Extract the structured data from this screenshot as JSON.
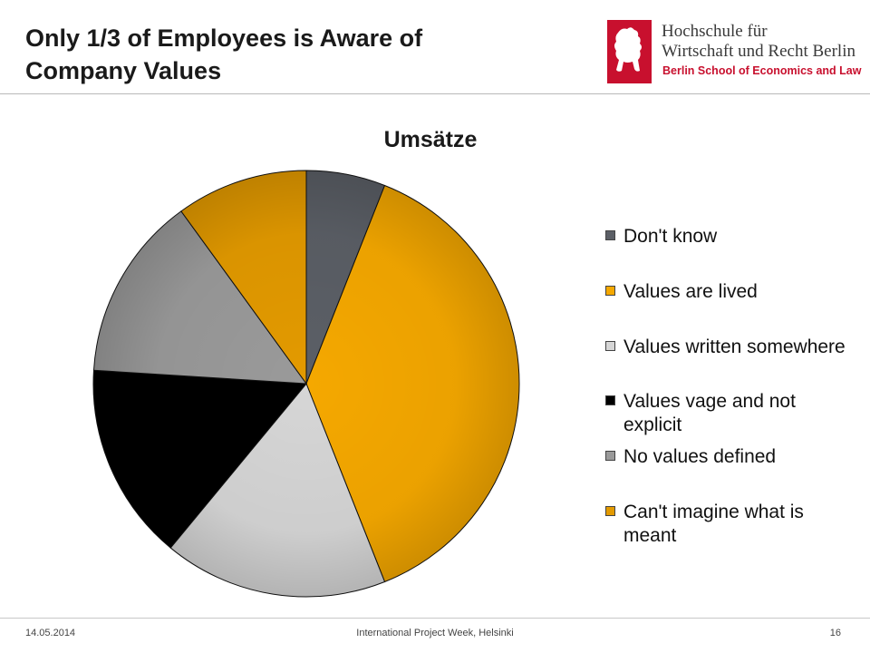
{
  "slide": {
    "title": "Only 1/3 of Employees is Aware of Company Values"
  },
  "logo": {
    "line1": "Hochschule für",
    "line2": "Wirtschaft und Recht Berlin",
    "line3": "Berlin School of Economics and Law",
    "brand_color": "#c8102e"
  },
  "footer": {
    "date": "14.05.2014",
    "event": "International Project Week, Helsinki",
    "page": "16"
  },
  "chart_data": {
    "type": "pie",
    "title": "Umsätze",
    "legend_position": "right",
    "start_angle_deg": 0,
    "direction": "clockwise",
    "slices": [
      {
        "label": "Don't know",
        "value": 6,
        "color": "#5b5f66"
      },
      {
        "label": "Values are lived",
        "value": 38,
        "color": "#f5a800"
      },
      {
        "label": "Values written somewhere",
        "value": 17,
        "color": "#d6d6d6"
      },
      {
        "label": "Values vage and not explicit",
        "value": 15,
        "color": "#000000"
      },
      {
        "label": "No values defined",
        "value": 14,
        "color": "#9a9a9a"
      },
      {
        "label": "Can't imagine what is meant",
        "value": 10,
        "color": "#e39a00"
      }
    ]
  }
}
